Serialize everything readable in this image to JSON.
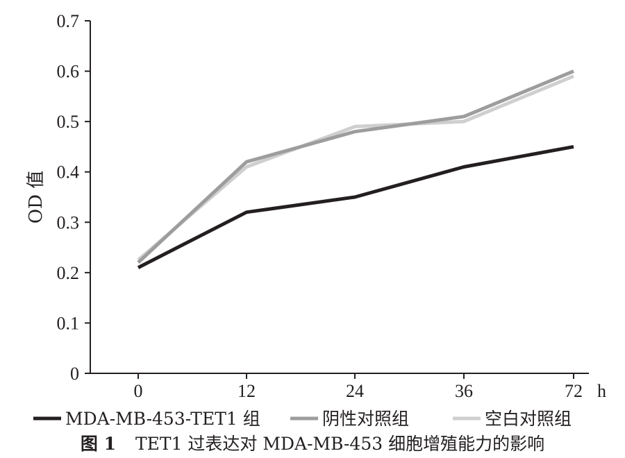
{
  "chart_data": {
    "type": "line",
    "x": [
      0,
      12,
      24,
      36,
      72
    ],
    "x_unit": "h",
    "ylabel": "OD 值",
    "ylim": [
      0,
      0.7
    ],
    "yticks": [
      "0",
      "0.1",
      "0.2",
      "0.3",
      "0.4",
      "0.5",
      "0.6",
      "0.7"
    ],
    "xticks": [
      "0",
      "12",
      "24",
      "36",
      "72"
    ],
    "grid": false,
    "legend_position": "bottom",
    "series": [
      {
        "name": "MDA-MB-453-TET1 组",
        "color": "#231f20",
        "values": [
          0.21,
          0.32,
          0.35,
          0.41,
          0.45
        ]
      },
      {
        "name": "阴性对照组",
        "color": "#9d9d9d",
        "values": [
          0.22,
          0.42,
          0.48,
          0.51,
          0.6
        ]
      },
      {
        "name": "空白对照组",
        "color": "#cfcfcf",
        "values": [
          0.225,
          0.41,
          0.49,
          0.5,
          0.59
        ]
      }
    ]
  },
  "caption": {
    "label": "图 1",
    "text": "TET1 过表达对 MDA-MB-453 细胞增殖能力的影响"
  }
}
